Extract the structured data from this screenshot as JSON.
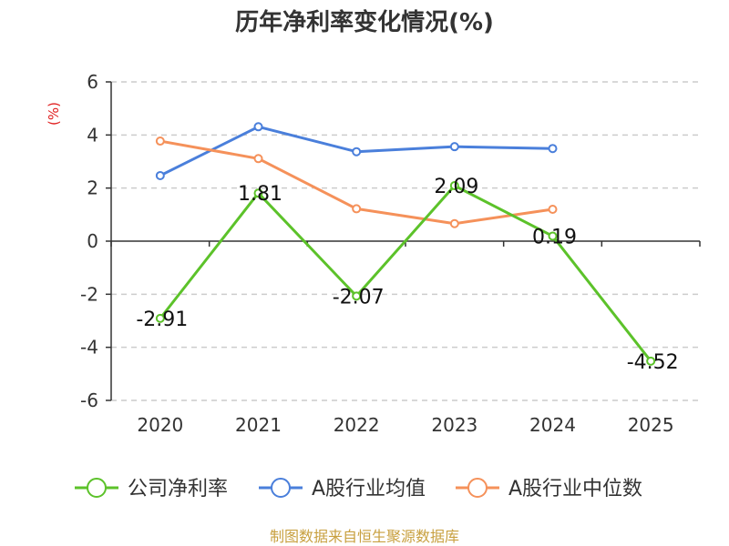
{
  "chart_data": {
    "type": "line",
    "title": "历年净利率变化情况(%)",
    "ylabel": "(%)",
    "categories": [
      "2020",
      "2021",
      "2022",
      "2023",
      "2024",
      "2025"
    ],
    "ylim": [
      -6,
      6
    ],
    "yticks": [
      6,
      4,
      2,
      0,
      -2,
      -4,
      -6
    ],
    "grid": true,
    "legend_position": "bottom",
    "series": [
      {
        "name": "公司净利率",
        "color": "#5cc22a",
        "values": [
          -2.91,
          1.81,
          -2.07,
          2.09,
          0.19,
          -4.52
        ],
        "labels": [
          "-2.91",
          "1.81",
          "-2.07",
          "2.09",
          "0.19",
          "-4.52"
        ]
      },
      {
        "name": "A股行业均值",
        "color": "#4a7fdb",
        "values": [
          2.47,
          4.31,
          3.37,
          3.56,
          3.49,
          null
        ]
      },
      {
        "name": "A股行业中位数",
        "color": "#f5915a",
        "values": [
          3.77,
          3.11,
          1.22,
          0.66,
          1.2,
          null
        ]
      }
    ],
    "ylabel_color": "#e02020"
  },
  "source": {
    "text": "制图数据来自恒生聚源数据库",
    "color": "#c8a040"
  }
}
